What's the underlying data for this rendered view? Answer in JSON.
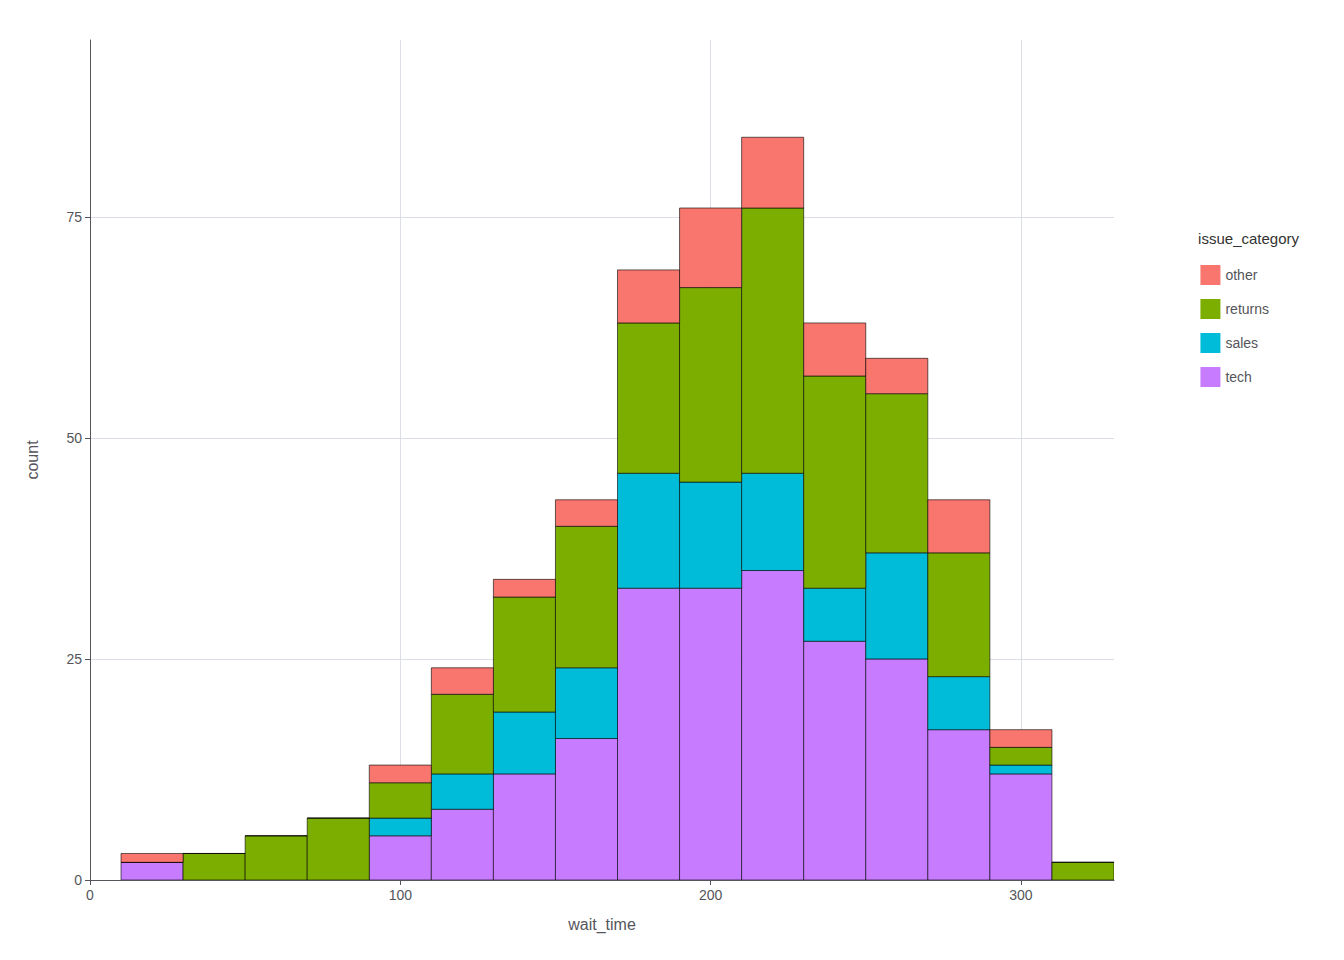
{
  "chart_data": {
    "type": "histogram",
    "xlabel": "wait_time",
    "ylabel": "count",
    "legend_title": "issue_category",
    "bins": [
      10,
      30,
      50,
      70,
      90,
      110,
      130,
      150,
      170,
      190,
      210,
      230,
      250,
      270,
      290,
      310,
      330
    ],
    "series": [
      {
        "name": "other",
        "color": "#F8766D",
        "values": [
          1,
          0,
          0,
          0,
          2,
          3,
          2,
          3,
          6,
          9,
          8,
          6,
          4,
          6,
          2,
          0
        ]
      },
      {
        "name": "returns",
        "color": "#7CAE00",
        "values": [
          0,
          3,
          5,
          7,
          4,
          9,
          13,
          16,
          17,
          22,
          30,
          24,
          18,
          14,
          2,
          2
        ]
      },
      {
        "name": "sales",
        "color": "#00BCD8",
        "values": [
          0,
          0,
          0,
          0,
          2,
          4,
          7,
          8,
          13,
          12,
          11,
          6,
          12,
          6,
          1,
          0
        ]
      },
      {
        "name": "tech",
        "color": "#C77CFF",
        "values": [
          2,
          0,
          0,
          0,
          5,
          8,
          12,
          16,
          33,
          33,
          35,
          27,
          25,
          17,
          12,
          0
        ]
      }
    ],
    "stacked": true,
    "xlim": [
      0,
      330
    ],
    "xticks": [
      0,
      100,
      200,
      300
    ],
    "ylim": [
      0,
      95
    ],
    "yticks": [
      0,
      25,
      50,
      75
    ],
    "grid": true,
    "legend": "right"
  }
}
